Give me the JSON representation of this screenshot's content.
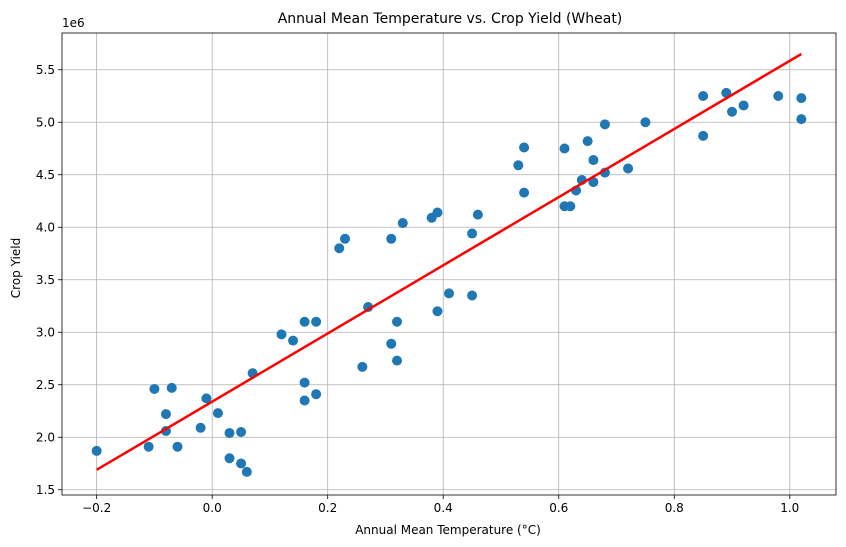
{
  "chart_data": {
    "type": "scatter",
    "title": "Annual Mean Temperature vs. Crop Yield (Wheat)",
    "xlabel": "Annual Mean Temperature (°C)",
    "ylabel": "Crop Yield",
    "y_offset_label": "1e6",
    "xlim": [
      -0.26,
      1.08
    ],
    "ylim": [
      1450000,
      5850000
    ],
    "x_ticks": [
      -0.2,
      0.0,
      0.2,
      0.4,
      0.6,
      0.8,
      1.0
    ],
    "x_tick_labels": [
      "−0.2",
      "0.0",
      "0.2",
      "0.4",
      "0.6",
      "0.8",
      "1.0"
    ],
    "y_ticks": [
      1500000,
      2000000,
      2500000,
      3000000,
      3500000,
      4000000,
      4500000,
      5000000,
      5500000
    ],
    "y_tick_labels": [
      "1.5",
      "2.0",
      "2.5",
      "3.0",
      "3.5",
      "4.0",
      "4.5",
      "5.0",
      "5.5"
    ],
    "grid": true,
    "point_color": "#1f77b4",
    "trend_color": "#ff0000",
    "points": [
      [
        -0.2,
        1870000
      ],
      [
        -0.11,
        1910000
      ],
      [
        -0.1,
        2460000
      ],
      [
        -0.08,
        2220000
      ],
      [
        -0.08,
        2060000
      ],
      [
        -0.07,
        2470000
      ],
      [
        -0.06,
        1910000
      ],
      [
        -0.02,
        2090000
      ],
      [
        -0.01,
        2370000
      ],
      [
        0.01,
        2230000
      ],
      [
        0.03,
        2040000
      ],
      [
        0.03,
        1800000
      ],
      [
        0.05,
        2050000
      ],
      [
        0.05,
        1750000
      ],
      [
        0.06,
        1670000
      ],
      [
        0.07,
        2610000
      ],
      [
        0.12,
        2980000
      ],
      [
        0.14,
        2920000
      ],
      [
        0.16,
        3100000
      ],
      [
        0.16,
        2520000
      ],
      [
        0.16,
        2350000
      ],
      [
        0.18,
        3100000
      ],
      [
        0.18,
        2410000
      ],
      [
        0.22,
        3800000
      ],
      [
        0.23,
        3890000
      ],
      [
        0.26,
        2670000
      ],
      [
        0.27,
        3240000
      ],
      [
        0.31,
        3890000
      ],
      [
        0.31,
        2890000
      ],
      [
        0.32,
        3100000
      ],
      [
        0.32,
        2730000
      ],
      [
        0.33,
        4040000
      ],
      [
        0.38,
        4090000
      ],
      [
        0.39,
        4140000
      ],
      [
        0.39,
        3200000
      ],
      [
        0.41,
        3370000
      ],
      [
        0.45,
        3940000
      ],
      [
        0.45,
        3350000
      ],
      [
        0.46,
        4120000
      ],
      [
        0.53,
        4590000
      ],
      [
        0.54,
        4760000
      ],
      [
        0.54,
        4330000
      ],
      [
        0.61,
        4750000
      ],
      [
        0.61,
        4200000
      ],
      [
        0.62,
        4200000
      ],
      [
        0.63,
        4350000
      ],
      [
        0.64,
        4450000
      ],
      [
        0.65,
        4820000
      ],
      [
        0.66,
        4640000
      ],
      [
        0.66,
        4430000
      ],
      [
        0.68,
        4980000
      ],
      [
        0.68,
        4520000
      ],
      [
        0.72,
        4560000
      ],
      [
        0.75,
        5000000
      ],
      [
        0.85,
        5250000
      ],
      [
        0.85,
        4870000
      ],
      [
        0.89,
        5280000
      ],
      [
        0.9,
        5100000
      ],
      [
        0.92,
        5160000
      ],
      [
        0.98,
        5250000
      ],
      [
        1.02,
        5230000
      ],
      [
        1.02,
        5030000
      ]
    ],
    "trend_line": {
      "x": [
        -0.2,
        1.02
      ],
      "y": [
        1690000,
        5650000
      ]
    }
  }
}
